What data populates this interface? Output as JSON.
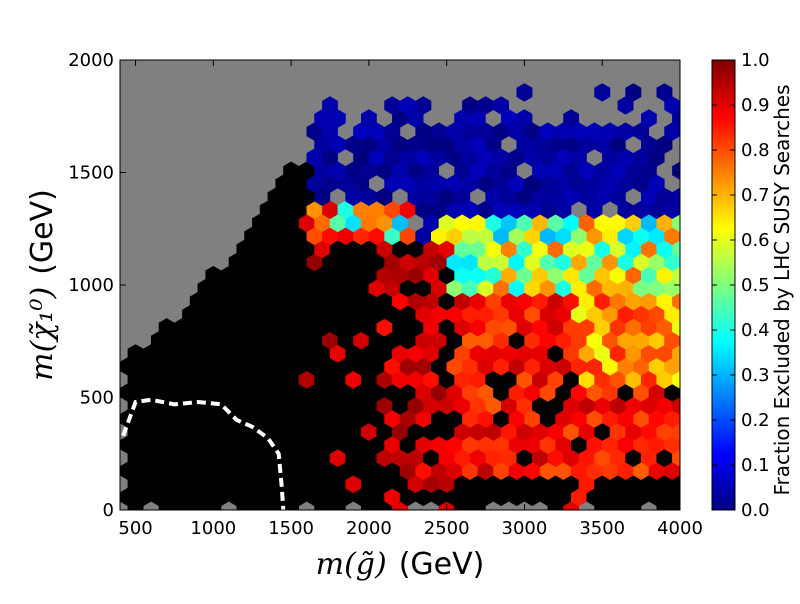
{
  "chart_data": {
    "type": "heatmap",
    "variant": "hexbin",
    "title": "",
    "xlabel": "m(g̃) (GeV)",
    "ylabel": "m(χ̃₁⁰) (GeV)",
    "xlim": [
      400,
      4000
    ],
    "ylim": [
      0,
      2000
    ],
    "x_ticks": [
      500,
      1000,
      1500,
      2000,
      2500,
      3000,
      3500,
      4000
    ],
    "y_ticks": [
      0,
      500,
      1000,
      1500,
      2000
    ],
    "grid": false,
    "background_color": "#808080",
    "colorbar": {
      "label": "Fraction Excluded by LHC SUSY Searches",
      "colormap": "jet",
      "range": [
        0.0,
        1.0
      ],
      "ticks": [
        "0.0",
        "0.1",
        "0.2",
        "0.3",
        "0.4",
        "0.5",
        "0.6",
        "0.7",
        "0.8",
        "0.9",
        "1.0"
      ],
      "stops": [
        "#00007f",
        "#0000ff",
        "#007fff",
        "#00ffff",
        "#7fff7f",
        "#ffff00",
        "#ff7f00",
        "#ff0000",
        "#7f0000"
      ]
    },
    "fully_excluded_color": "#000000",
    "hex_spacing": {
      "dx": 100,
      "dy": 58
    },
    "regions": [
      {
        "name": "fully excluded",
        "value": 1.0,
        "x_min": 450,
        "x_max": 2300,
        "y_min": 20,
        "y_max_by_x": [
          [
            450,
            700
          ],
          [
            600,
            760
          ],
          [
            1000,
            1050
          ],
          [
            1300,
            1300
          ],
          [
            1400,
            1430
          ],
          [
            1550,
            1550
          ],
          [
            1650,
            1560
          ],
          [
            2000,
            1500
          ],
          [
            2300,
            1420
          ]
        ]
      },
      {
        "name": "mixed exclusion (0.85–1.0)",
        "value_range": [
          0.85,
          1.0
        ],
        "x_min": 1800,
        "x_max": 3000,
        "y_min": 150,
        "y_max": 1250
      },
      {
        "name": "high exclusion (0.75–0.95)",
        "value_range": [
          0.75,
          0.95
        ],
        "x_min": 2500,
        "x_max": 4000,
        "y_min": 80,
        "y_max": 1000
      },
      {
        "name": "partial exclusion (0.3–0.8)",
        "value_range": [
          0.3,
          0.8
        ],
        "x_min": 2600,
        "x_max": 4000,
        "y_min": 700,
        "y_max": 1300
      },
      {
        "name": "not excluded (0.0–0.1)",
        "value_range": [
          0.0,
          0.1
        ],
        "x_min": 1650,
        "x_max": 4000,
        "y_min": 1180,
        "y_max": 1850
      }
    ],
    "dashed_contour": {
      "style": "white dashed",
      "points": [
        [
          420,
          330
        ],
        [
          500,
          480
        ],
        [
          600,
          490
        ],
        [
          750,
          470
        ],
        [
          900,
          480
        ],
        [
          1050,
          470
        ],
        [
          1150,
          400
        ],
        [
          1250,
          370
        ],
        [
          1350,
          320
        ],
        [
          1420,
          250
        ],
        [
          1440,
          100
        ],
        [
          1450,
          0
        ]
      ]
    }
  }
}
